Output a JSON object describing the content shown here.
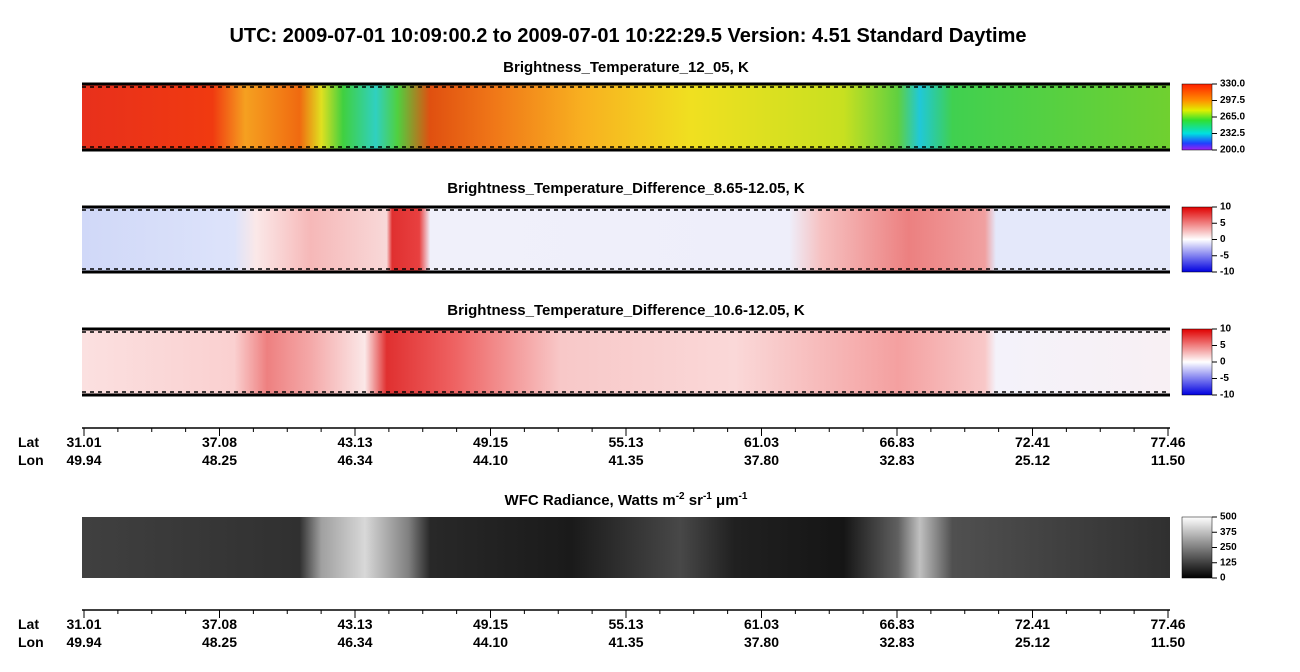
{
  "title": "UTC:  2009-07-01   10:09:00.2  to  2009-07-01   10:22:29.5   Version: 4.51  Standard Daytime",
  "panels": [
    {
      "title": "Brightness_Temperature_12_05, K",
      "clim": [
        200,
        330
      ],
      "colorbar_ticks": [
        {
          "value": 330,
          "label": "330.0"
        },
        {
          "value": 297.5,
          "label": "297.5"
        },
        {
          "value": 265,
          "label": "265.0"
        },
        {
          "value": 232.5,
          "label": "232.5"
        },
        {
          "value": 200,
          "label": "200.0"
        }
      ]
    },
    {
      "title": "Brightness_Temperature_Difference_8.65-12.05, K",
      "clim": [
        -10,
        10
      ],
      "colorbar_ticks": [
        10,
        5,
        0,
        -5,
        -10
      ]
    },
    {
      "title": "Brightness_Temperature_Difference_10.6-12.05, K",
      "clim": [
        -10,
        10
      ],
      "colorbar_ticks": [
        10,
        5,
        0,
        -5,
        -10
      ]
    },
    {
      "title_parts": [
        "WFC Radiance, Watts m",
        "-2",
        " sr",
        "-1",
        " μm",
        "-1"
      ],
      "clim": [
        0,
        500
      ],
      "colorbar_ticks": [
        500,
        375,
        250,
        125,
        0
      ]
    }
  ],
  "axes": [
    {
      "lat_label": "Lat",
      "lon_label": "Lon",
      "lat": [
        "31.01",
        "37.08",
        "43.13",
        "49.15",
        "55.13",
        "61.03",
        "66.83",
        "72.41",
        "77.46"
      ],
      "lon": [
        "49.94",
        "48.25",
        "46.34",
        "44.10",
        "41.35",
        "37.80",
        "32.83",
        "25.12",
        "11.50"
      ]
    },
    {
      "lat_label": "Lat",
      "lon_label": "Lon",
      "lat": [
        "31.01",
        "37.08",
        "43.13",
        "49.15",
        "55.13",
        "61.03",
        "66.83",
        "72.41",
        "77.46"
      ],
      "lon": [
        "49.94",
        "48.25",
        "46.34",
        "44.10",
        "41.35",
        "37.80",
        "32.83",
        "25.12",
        "11.50"
      ]
    }
  ]
}
